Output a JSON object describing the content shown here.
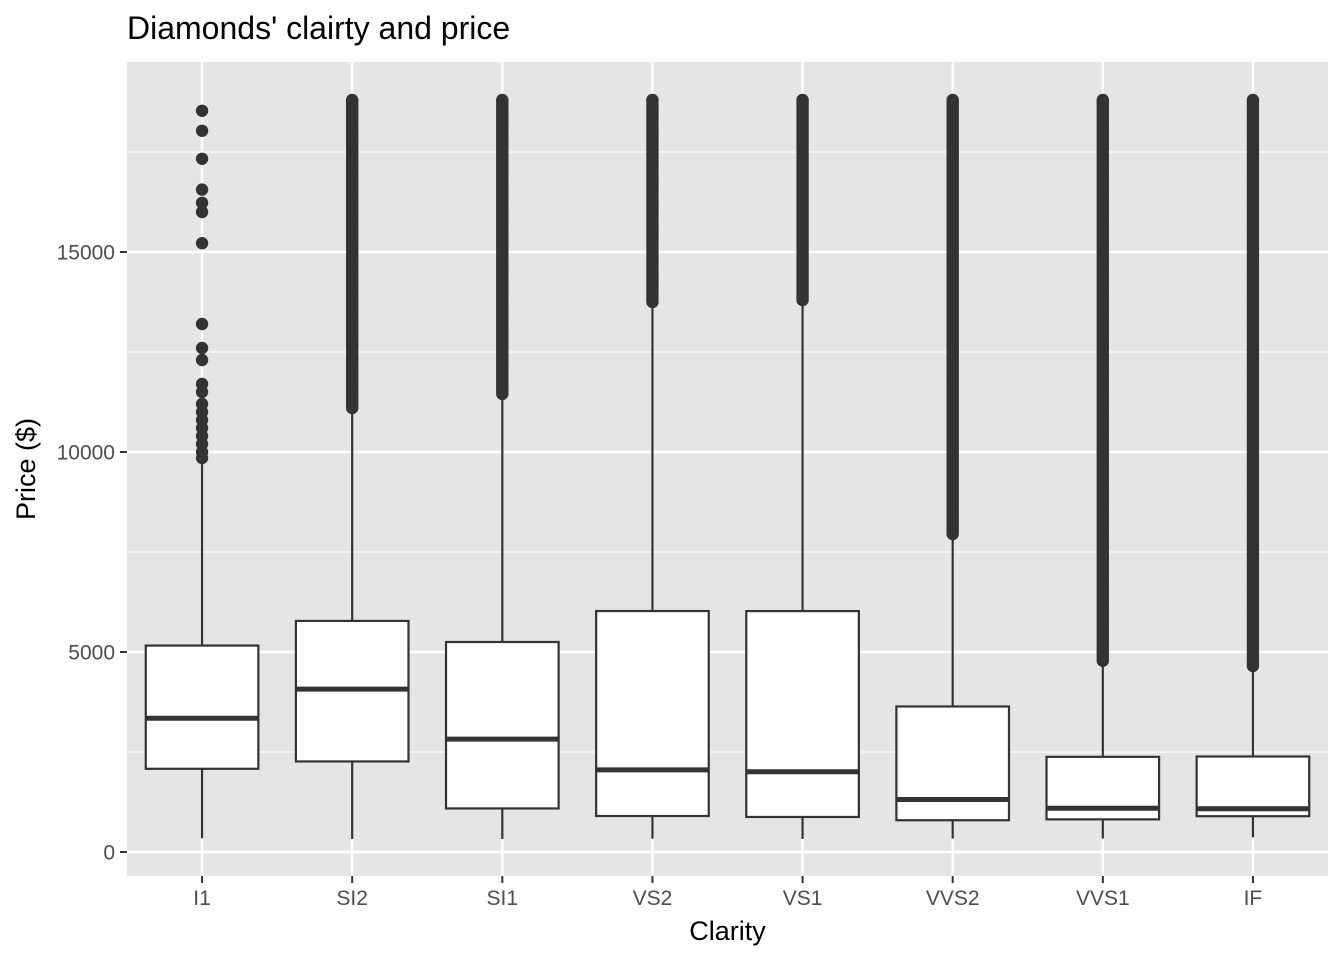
{
  "chart_data": {
    "type": "boxplot",
    "title": "Diamonds' clairty and price",
    "xlabel": "Clarity",
    "ylabel": "Price ($)",
    "categories": [
      "I1",
      "SI2",
      "SI1",
      "VS2",
      "VS1",
      "VVS2",
      "VVS1",
      "IF"
    ],
    "y_ticks": [
      0,
      5000,
      10000,
      15000
    ],
    "y_tick_labels": [
      "0",
      "5000",
      "10000",
      "15000"
    ],
    "ylim": [
      -570,
      19500
    ],
    "grid": true,
    "colors": {
      "panel_background": "#e5e5e5",
      "grid": "#ffffff",
      "box_fill": "#ffffff",
      "box_line": "#333333",
      "outlier": "#333333"
    },
    "boxes": [
      {
        "category": "I1",
        "lower_whisker": 345,
        "q1": 2080,
        "median": 3344,
        "q3": 5161,
        "upper_whisker": 9700,
        "outliers": [
          18530,
          18030,
          17330,
          16560,
          16230,
          16000,
          15220,
          13200,
          12600,
          12300,
          11700,
          11500,
          11200,
          11000,
          10800,
          10600,
          10400,
          10200,
          10000,
          9850
        ]
      },
      {
        "category": "SI2",
        "lower_whisker": 326,
        "q1": 2264,
        "median": 4072,
        "q3": 5777,
        "upper_whisker": 11050,
        "outlier_band": [
          11100,
          18800
        ]
      },
      {
        "category": "SI1",
        "lower_whisker": 326,
        "q1": 1089,
        "median": 2822,
        "q3": 5250,
        "upper_whisker": 11400,
        "outlier_band": [
          11450,
          18800
        ]
      },
      {
        "category": "VS2",
        "lower_whisker": 334,
        "q1": 900,
        "median": 2054,
        "q3": 6024,
        "upper_whisker": 13700,
        "outlier_band": [
          13750,
          18800
        ]
      },
      {
        "category": "VS1",
        "lower_whisker": 327,
        "q1": 876,
        "median": 2005,
        "q3": 6023,
        "upper_whisker": 13750,
        "outlier_band": [
          13800,
          18800
        ]
      },
      {
        "category": "VVS2",
        "lower_whisker": 336,
        "q1": 794,
        "median": 1311,
        "q3": 3638,
        "upper_whisker": 7900,
        "outlier_band": [
          7950,
          18800
        ]
      },
      {
        "category": "VVS1",
        "lower_whisker": 336,
        "q1": 816,
        "median": 1093,
        "q3": 2379,
        "upper_whisker": 4740,
        "outlier_band": [
          4780,
          18800
        ]
      },
      {
        "category": "IF",
        "lower_whisker": 369,
        "q1": 895,
        "median": 1080,
        "q3": 2388,
        "upper_whisker": 4600,
        "outlier_band": [
          4650,
          18800
        ]
      }
    ]
  }
}
